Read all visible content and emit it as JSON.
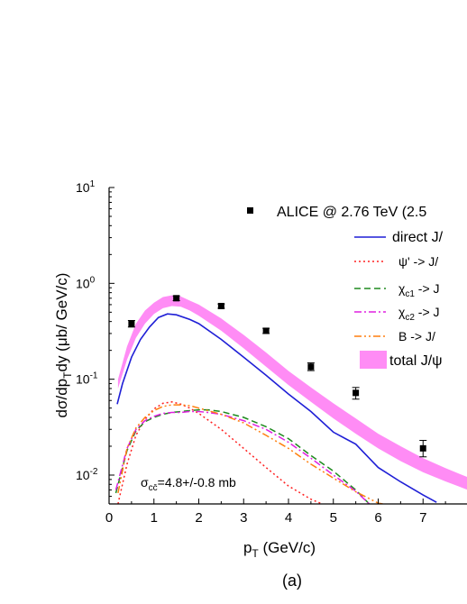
{
  "chart_data": {
    "type": "line",
    "title": "",
    "xlabel": "p_T (GeV/c)",
    "ylabel": "dσ/dp_Tdy (μb/ GeV/c)",
    "caption": "(a)",
    "annotation": "σ_cc̄=4.8+/-0.8 mb",
    "xlim": [
      0,
      8
    ],
    "ylim": [
      0.005,
      10
    ],
    "yscale": "log",
    "x_ticks": [
      "0",
      "1",
      "2",
      "3",
      "4",
      "5",
      "6",
      "7"
    ],
    "y_ticks": [
      {
        "value": 10,
        "mantissa": "10",
        "exp": "1"
      },
      {
        "value": 1,
        "mantissa": "10",
        "exp": "0"
      },
      {
        "value": 0.1,
        "mantissa": "10",
        "exp": "-1"
      },
      {
        "value": 0.01,
        "mantissa": "10",
        "exp": "-2"
      }
    ],
    "legend_position": "top-right",
    "data_points": {
      "name": "ALICE @ 2.76 TeV (2.5",
      "color": "#000000",
      "x": [
        0.5,
        1.5,
        2.5,
        3.5,
        4.5,
        5.5,
        7.0
      ],
      "y": [
        0.38,
        0.7,
        0.58,
        0.32,
        0.135,
        0.072,
        0.019
      ],
      "err_low": [
        0.35,
        0.66,
        0.55,
        0.3,
        0.123,
        0.062,
        0.0155
      ],
      "err_high": [
        0.41,
        0.74,
        0.61,
        0.34,
        0.148,
        0.082,
        0.023
      ]
    },
    "series": [
      {
        "name": "direct J/",
        "color": "#1f1fd6",
        "dash": "solid",
        "x": [
          0.18,
          0.3,
          0.5,
          0.7,
          0.9,
          1.1,
          1.3,
          1.5,
          1.8,
          2.0,
          2.5,
          3.0,
          3.5,
          4.0,
          4.5,
          5.0,
          5.5,
          6.0,
          6.5,
          7.0,
          7.3
        ],
        "y": [
          0.055,
          0.09,
          0.17,
          0.26,
          0.35,
          0.44,
          0.48,
          0.47,
          0.42,
          0.38,
          0.26,
          0.17,
          0.11,
          0.07,
          0.046,
          0.028,
          0.021,
          0.012,
          0.0085,
          0.0062,
          0.0052
        ]
      },
      {
        "name": "ψ' ->  J/",
        "color": "#ff2020",
        "dash": "2,3",
        "x": [
          0.2,
          0.4,
          0.6,
          0.8,
          1.0,
          1.2,
          1.4,
          1.6,
          1.8,
          2.0,
          2.5,
          3.0,
          3.5,
          4.0,
          4.5,
          4.75
        ],
        "y": [
          0.005,
          0.013,
          0.026,
          0.038,
          0.049,
          0.056,
          0.058,
          0.055,
          0.05,
          0.044,
          0.03,
          0.019,
          0.012,
          0.0077,
          0.0056,
          0.005
        ]
      },
      {
        "name": "χ_c1 ->  J",
        "color": "#1e8a1e",
        "dash": "7,4",
        "x": [
          0.15,
          0.4,
          0.6,
          0.8,
          1.0,
          1.2,
          1.4,
          1.6,
          1.8,
          2.0,
          2.2,
          2.5,
          3.0,
          3.5,
          4.0,
          4.5,
          5.0,
          5.5,
          5.8
        ],
        "y": [
          0.0065,
          0.018,
          0.029,
          0.036,
          0.04,
          0.043,
          0.045,
          0.046,
          0.047,
          0.048,
          0.048,
          0.046,
          0.04,
          0.032,
          0.024,
          0.016,
          0.011,
          0.007,
          0.005
        ]
      },
      {
        "name": "χ_c2 ->  J",
        "color": "#e020e0",
        "dash": "8,3,2,3",
        "x": [
          0.15,
          0.4,
          0.6,
          0.8,
          1.0,
          1.2,
          1.4,
          1.6,
          1.8,
          2.0,
          2.2,
          2.5,
          3.0,
          3.5,
          4.0,
          4.5,
          5.0,
          5.5,
          5.8
        ],
        "y": [
          0.007,
          0.019,
          0.03,
          0.037,
          0.041,
          0.044,
          0.045,
          0.045,
          0.046,
          0.046,
          0.045,
          0.043,
          0.037,
          0.03,
          0.022,
          0.015,
          0.01,
          0.0068,
          0.005
        ]
      },
      {
        "name": "B ->  J/",
        "color": "#ff7f0e",
        "dash": "8,3,2,3,2,3",
        "x": [
          0.2,
          0.4,
          0.6,
          0.8,
          1.0,
          1.2,
          1.4,
          1.6,
          1.8,
          2.0,
          2.5,
          3.0,
          3.5,
          4.0,
          4.5,
          5.0,
          5.5,
          6.0,
          6.1
        ],
        "y": [
          0.0065,
          0.019,
          0.031,
          0.04,
          0.047,
          0.052,
          0.054,
          0.054,
          0.053,
          0.05,
          0.043,
          0.035,
          0.026,
          0.019,
          0.013,
          0.0093,
          0.0067,
          0.0051,
          0.005
        ]
      }
    ],
    "band": {
      "name": "total J/ψ",
      "color": "#ff8cf5",
      "x": [
        0.2,
        0.4,
        0.6,
        0.8,
        1.0,
        1.2,
        1.4,
        1.6,
        1.8,
        2.0,
        2.5,
        3.0,
        3.5,
        4.0,
        4.5,
        5.0,
        5.5,
        6.0,
        6.5,
        7.0,
        7.5,
        8.0
      ],
      "y_low": [
        0.08,
        0.16,
        0.27,
        0.38,
        0.48,
        0.55,
        0.58,
        0.57,
        0.52,
        0.46,
        0.32,
        0.21,
        0.135,
        0.087,
        0.058,
        0.039,
        0.027,
        0.019,
        0.014,
        0.0107,
        0.0086,
        0.007
      ],
      "y_high": [
        0.1,
        0.22,
        0.38,
        0.52,
        0.63,
        0.72,
        0.75,
        0.73,
        0.66,
        0.6,
        0.43,
        0.29,
        0.19,
        0.122,
        0.082,
        0.056,
        0.039,
        0.027,
        0.02,
        0.015,
        0.0118,
        0.0095
      ]
    }
  }
}
